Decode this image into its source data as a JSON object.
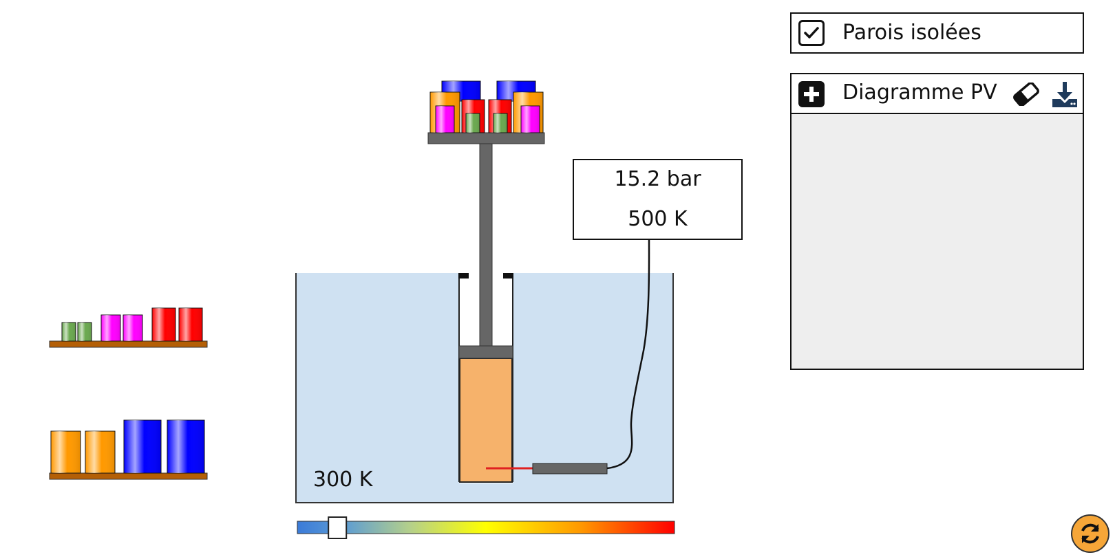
{
  "options": {
    "insulated_walls": {
      "label": "Parois isolées",
      "checked": true
    },
    "pv_diagram": {
      "label": "Diagramme PV",
      "expanded": true
    }
  },
  "gauge": {
    "pressure": "15.2 bar",
    "temperature": "500 K"
  },
  "bath": {
    "temperature_label": "300 K"
  },
  "heater_slider": {
    "level": 0.1
  },
  "icons": {
    "checkbox": "check-icon",
    "expand": "plus-square-icon",
    "erase": "eraser-icon",
    "download": "download-icon",
    "restart": "restart-icon"
  },
  "colors": {
    "bath_water": "#cfe1f2",
    "gas": "#f6b26b",
    "piston": "#666666",
    "shelf": "#b45f06",
    "weight_green": "#6aa84f",
    "weight_magenta": "#ff00ff",
    "weight_red": "#ff0000",
    "weight_orange": "#ff9900",
    "weight_blue": "#0000ff",
    "restart_button": "#f6a638"
  }
}
